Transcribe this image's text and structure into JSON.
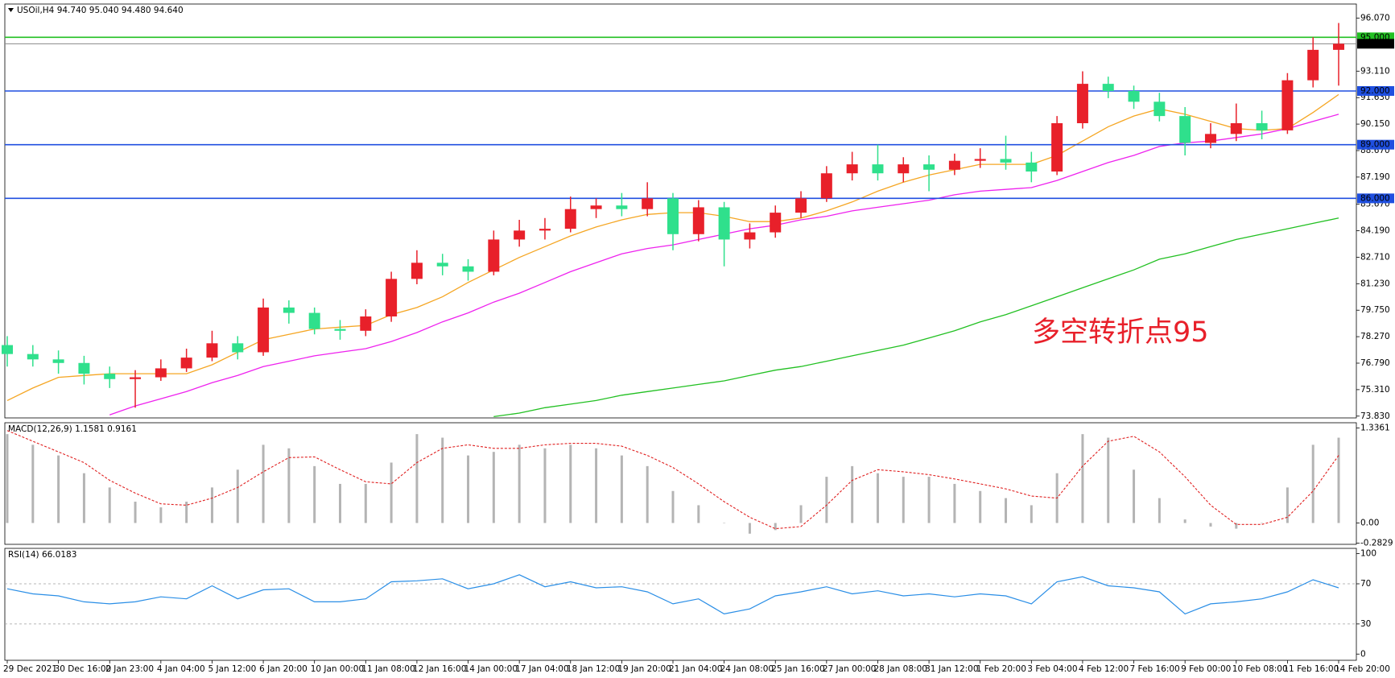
{
  "chart_data": [
    {
      "type": "candlestick",
      "title": "USOil,H4  94.740 95.040 94.480 94.640",
      "categories": [
        "29 Dec 2021",
        null,
        "30 Dec 16:00",
        null,
        "2 Jan 23:00",
        null,
        "4 Jan 04:00",
        null,
        "5 Jan 12:00",
        null,
        "6 Jan 20:00",
        null,
        "10 Jan 00:00",
        null,
        "11 Jan 08:00",
        null,
        "12 Jan 16:00",
        null,
        "14 Jan 00:00",
        null,
        "17 Jan 04:00",
        null,
        "18 Jan 12:00",
        null,
        "19 Jan 20:00",
        null,
        "21 Jan 04:00",
        null,
        "24 Jan 08:00",
        null,
        "25 Jan 16:00",
        null,
        "27 Jan 00:00",
        null,
        "28 Jan 08:00",
        null,
        "31 Jan 12:00",
        null,
        "1 Feb 20:00",
        null,
        "3 Feb 04:00",
        null,
        "4 Feb 12:00",
        null,
        "7 Feb 16:00",
        null,
        "9 Feb 00:00",
        null,
        "10 Feb 08:00",
        null,
        "11 Feb 16:00",
        null,
        "14 Feb 20:00"
      ],
      "open": [
        77.8,
        77.3,
        77.0,
        76.8,
        76.2,
        75.9,
        76.0,
        76.5,
        77.1,
        77.9,
        77.4,
        79.9,
        79.6,
        78.7,
        78.6,
        79.4,
        81.5,
        82.4,
        82.2,
        81.9,
        83.7,
        84.2,
        84.3,
        85.4,
        85.6,
        85.4,
        86.0,
        84.0,
        85.5,
        83.7,
        84.1,
        85.2,
        86.0,
        87.4,
        87.9,
        87.4,
        87.9,
        87.6,
        88.1,
        88.2,
        88.0,
        87.5,
        90.2,
        92.4,
        92.0,
        91.4,
        90.6,
        89.1,
        89.6,
        90.2,
        89.8,
        92.6,
        94.3
      ],
      "high": [
        78.3,
        77.8,
        77.5,
        77.2,
        76.6,
        76.4,
        77.0,
        77.6,
        78.6,
        78.3,
        80.4,
        80.3,
        79.9,
        79.2,
        79.8,
        81.9,
        83.1,
        82.9,
        82.6,
        84.2,
        84.8,
        84.9,
        86.1,
        86.0,
        86.3,
        86.9,
        86.3,
        85.9,
        85.8,
        84.6,
        85.6,
        86.4,
        87.8,
        88.6,
        89.0,
        88.3,
        88.4,
        88.5,
        88.8,
        89.5,
        88.6,
        90.6,
        93.1,
        92.8,
        92.3,
        91.9,
        91.1,
        90.2,
        91.3,
        90.9,
        93.0,
        95.0,
        95.8
      ],
      "low": [
        76.6,
        76.6,
        76.2,
        75.6,
        75.4,
        74.3,
        75.8,
        76.3,
        76.9,
        77.0,
        77.2,
        79.0,
        78.4,
        78.1,
        78.3,
        79.1,
        81.2,
        81.7,
        81.4,
        81.7,
        83.3,
        83.7,
        84.1,
        84.9,
        85.0,
        85.0,
        83.1,
        83.6,
        82.2,
        83.2,
        83.8,
        84.9,
        85.8,
        87.0,
        87.0,
        86.9,
        86.4,
        87.3,
        87.7,
        87.6,
        86.9,
        87.3,
        89.9,
        91.6,
        91.0,
        90.3,
        88.4,
        88.8,
        89.2,
        89.3,
        89.6,
        92.2,
        92.3
      ],
      "close": [
        77.3,
        77.0,
        76.8,
        76.2,
        75.9,
        76.0,
        76.5,
        77.1,
        77.9,
        77.4,
        79.9,
        79.6,
        78.7,
        78.6,
        79.4,
        81.5,
        82.4,
        82.2,
        81.9,
        83.7,
        84.2,
        84.3,
        85.4,
        85.6,
        85.4,
        86.0,
        84.0,
        85.5,
        83.7,
        84.1,
        85.2,
        86.0,
        87.4,
        87.9,
        87.4,
        87.9,
        87.6,
        88.1,
        88.2,
        88.0,
        87.5,
        90.2,
        92.4,
        92.0,
        91.4,
        90.6,
        89.1,
        89.6,
        90.2,
        89.8,
        92.6,
        94.3,
        94.64
      ],
      "up_color": "#e8202a",
      "down_color": "#2fe08c",
      "moving_averages": [
        {
          "color": "#f5a623",
          "values": [
            74.7,
            75.4,
            76.0,
            76.1,
            76.2,
            76.2,
            76.2,
            76.2,
            76.7,
            77.4,
            78.1,
            78.4,
            78.7,
            78.8,
            78.9,
            79.5,
            79.9,
            80.5,
            81.3,
            82.0,
            82.7,
            83.3,
            83.9,
            84.4,
            84.8,
            85.1,
            85.2,
            85.2,
            85.0,
            84.7,
            84.7,
            84.9,
            85.3,
            85.8,
            86.4,
            86.9,
            87.3,
            87.6,
            87.9,
            87.9,
            87.9,
            88.4,
            89.2,
            90.0,
            90.6,
            91.0,
            90.7,
            90.3,
            89.9,
            89.8,
            89.9,
            90.8,
            91.8
          ]
        },
        {
          "color": "#ee22ee",
          "values": [
            null,
            null,
            null,
            null,
            73.9,
            74.4,
            74.8,
            75.2,
            75.7,
            76.1,
            76.6,
            76.9,
            77.2,
            77.4,
            77.6,
            78.0,
            78.5,
            79.1,
            79.6,
            80.2,
            80.7,
            81.3,
            81.9,
            82.4,
            82.9,
            83.2,
            83.4,
            83.7,
            84.0,
            84.3,
            84.5,
            84.8,
            85.0,
            85.3,
            85.5,
            85.7,
            85.9,
            86.2,
            86.4,
            86.5,
            86.6,
            87.0,
            87.5,
            88.0,
            88.4,
            88.9,
            89.1,
            89.2,
            89.4,
            89.6,
            89.9,
            90.3,
            90.7
          ]
        },
        {
          "color": "#22c022",
          "values": [
            null,
            null,
            null,
            null,
            null,
            null,
            null,
            null,
            null,
            null,
            null,
            null,
            null,
            null,
            null,
            null,
            null,
            null,
            null,
            73.8,
            74.0,
            74.3,
            74.5,
            74.7,
            75.0,
            75.2,
            75.4,
            75.6,
            75.8,
            76.1,
            76.4,
            76.6,
            76.9,
            77.2,
            77.5,
            77.8,
            78.2,
            78.6,
            79.1,
            79.5,
            80.0,
            80.5,
            81.0,
            81.5,
            82.0,
            82.6,
            82.9,
            83.3,
            83.7,
            84.0,
            84.3,
            84.6,
            84.9
          ]
        }
      ],
      "levels": [
        {
          "value": 95.0,
          "label": "95.000",
          "color": "#22c022"
        },
        {
          "value": 92.0,
          "label": "92.000",
          "color": "#1f4fe0"
        },
        {
          "value": 89.0,
          "label": "89.000",
          "color": "#1f4fe0"
        },
        {
          "value": 86.0,
          "label": "86.000",
          "color": "#1f4fe0"
        }
      ],
      "price_label": {
        "value": 94.64,
        "label": "94.640"
      },
      "annotation": "多空转折点95",
      "ylim": [
        73.73,
        96.86
      ],
      "yticks": [
        {
          "value": 96.07,
          "label": "96.070"
        },
        {
          "value": 93.11,
          "label": "93.110"
        },
        {
          "value": 91.63,
          "label": "91.630"
        },
        {
          "value": 90.15,
          "label": "90.150"
        },
        {
          "value": 88.67,
          "label": "88.670"
        },
        {
          "value": 87.19,
          "label": "87.190"
        },
        {
          "value": 85.67,
          "label": "85.670"
        },
        {
          "value": 84.19,
          "label": "84.190"
        },
        {
          "value": 82.71,
          "label": "82.710"
        },
        {
          "value": 81.23,
          "label": "81.230"
        },
        {
          "value": 79.75,
          "label": "79.750"
        },
        {
          "value": 78.27,
          "label": "78.270"
        },
        {
          "value": 76.79,
          "label": "76.790"
        },
        {
          "value": 75.31,
          "label": "75.310"
        },
        {
          "value": 73.83,
          "label": "73.830"
        }
      ]
    },
    {
      "type": "macd",
      "title": "MACD(12,26,9) 1.1581 0.9161",
      "histogram": {
        "color": "#b4b4b4",
        "values": [
          1.25,
          1.1,
          0.95,
          0.7,
          0.5,
          0.3,
          0.22,
          0.3,
          0.5,
          0.75,
          1.1,
          1.05,
          0.8,
          0.55,
          0.55,
          0.85,
          1.25,
          1.2,
          0.95,
          1.0,
          1.1,
          1.05,
          1.1,
          1.05,
          0.95,
          0.8,
          0.45,
          0.25,
          0.0,
          -0.15,
          -0.1,
          0.25,
          0.65,
          0.8,
          0.7,
          0.65,
          0.65,
          0.55,
          0.45,
          0.35,
          0.25,
          0.7,
          1.25,
          1.2,
          0.75,
          0.35,
          0.05,
          -0.05,
          -0.08,
          0.0,
          0.5,
          1.1,
          1.2
        ]
      },
      "signal": {
        "color": "#e02020",
        "values": [
          1.3,
          1.15,
          1.0,
          0.85,
          0.6,
          0.42,
          0.27,
          0.25,
          0.35,
          0.5,
          0.72,
          0.92,
          0.93,
          0.75,
          0.58,
          0.55,
          0.85,
          1.05,
          1.1,
          1.05,
          1.05,
          1.1,
          1.12,
          1.12,
          1.08,
          0.95,
          0.78,
          0.55,
          0.3,
          0.08,
          -0.08,
          -0.05,
          0.25,
          0.6,
          0.75,
          0.72,
          0.68,
          0.62,
          0.55,
          0.48,
          0.38,
          0.35,
          0.8,
          1.15,
          1.22,
          1.0,
          0.65,
          0.25,
          -0.02,
          -0.02,
          0.08,
          0.45,
          0.95
        ]
      },
      "ylim": [
        -0.3,
        1.41
      ],
      "yticks": [
        1.3361,
        {
          "value": 0,
          "label": "0.00"
        },
        -0.2829
      ]
    },
    {
      "type": "line",
      "title": "RSI(14) 66.0183",
      "color": "#2a8ee6",
      "values": [
        65,
        60,
        58,
        52,
        50,
        52,
        57,
        55,
        68,
        55,
        64,
        65,
        52,
        52,
        55,
        72,
        73,
        75,
        65,
        70,
        79,
        67,
        72,
        66,
        67,
        62,
        50,
        55,
        40,
        45,
        58,
        62,
        67,
        60,
        63,
        58,
        60,
        57,
        60,
        58,
        50,
        72,
        77,
        68,
        66,
        62,
        40,
        50,
        52,
        55,
        62,
        74,
        66
      ],
      "levels": [
        70,
        30
      ],
      "ylim": [
        -6.2,
        105.3
      ],
      "yticks": [
        100,
        70,
        30,
        0
      ]
    }
  ]
}
